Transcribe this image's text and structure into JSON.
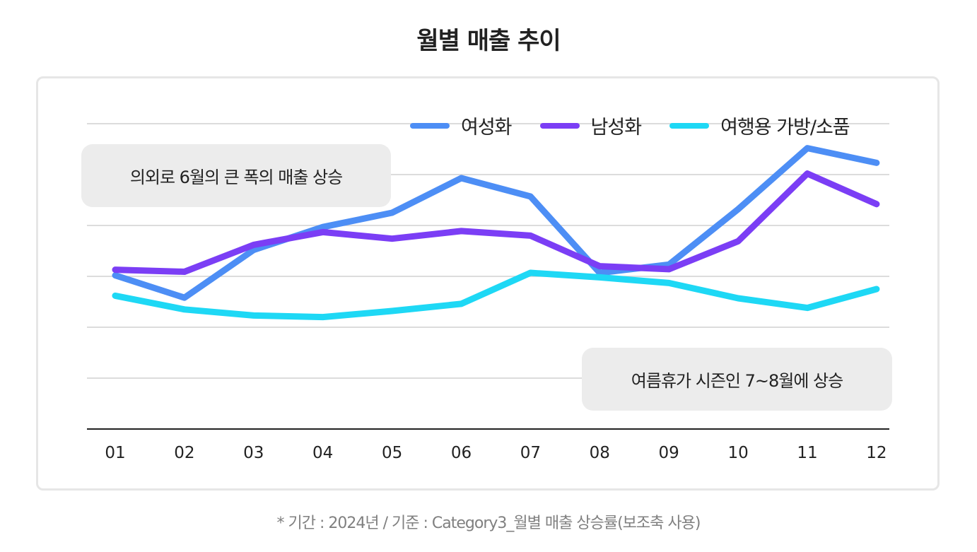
{
  "title": "월별 매출 추이",
  "footnote": "* 기간 : 2024년 / 기준 : Category3_월별 매출 상승률(보조축 사용)",
  "annotations": {
    "top_left": "의외로 6월의 큰 폭의 매출 상승",
    "bottom_right": "여름휴가 시즌인 7~8월에 상승"
  },
  "chart_data": {
    "type": "line",
    "title": "월별 매출 추이",
    "categories": [
      "01",
      "02",
      "03",
      "04",
      "05",
      "06",
      "07",
      "08",
      "09",
      "10",
      "11",
      "12"
    ],
    "ylim": [
      0,
      6
    ],
    "grid": true,
    "legend": "top-right",
    "series": [
      {
        "name": "여성화",
        "color": "#4d8ef5",
        "values": [
          3.02,
          2.58,
          3.52,
          3.97,
          4.25,
          4.93,
          4.57,
          3.07,
          3.23,
          4.32,
          5.52,
          5.23
        ]
      },
      {
        "name": "남성화",
        "color": "#7b3ef5",
        "values": [
          3.13,
          3.09,
          3.62,
          3.87,
          3.74,
          3.89,
          3.8,
          3.2,
          3.14,
          3.69,
          5.02,
          4.42
        ]
      },
      {
        "name": "여행용 가방/소품",
        "color": "#1ed8f5",
        "values": [
          2.62,
          2.35,
          2.23,
          2.2,
          2.32,
          2.46,
          3.07,
          2.98,
          2.87,
          2.57,
          2.38,
          2.75
        ]
      }
    ]
  }
}
